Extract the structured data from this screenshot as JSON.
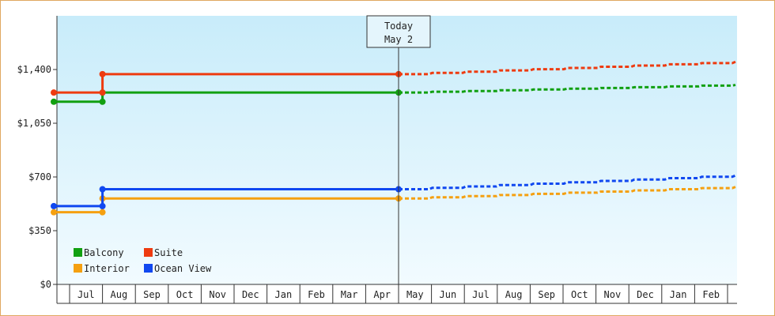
{
  "chart_data": {
    "type": "line",
    "title": "",
    "xlabel": "",
    "ylabel": "",
    "ylim": [
      0,
      1750
    ],
    "yticks": [
      {
        "value": 0,
        "label": "$0"
      },
      {
        "value": 350,
        "label": "$350"
      },
      {
        "value": 700,
        "label": "$700"
      },
      {
        "value": 1050,
        "label": "$1,050"
      },
      {
        "value": 1400,
        "label": "$1,400"
      }
    ],
    "months": [
      "Jul",
      "Aug",
      "Sep",
      "Oct",
      "Nov",
      "Dec",
      "Jan",
      "Feb",
      "Mar",
      "Apr",
      "May",
      "Jun",
      "Jul",
      "Aug",
      "Sep",
      "Oct",
      "Nov",
      "Dec",
      "Jan",
      "Feb"
    ],
    "today": {
      "line1": "Today",
      "line2": "May 2",
      "month_index": 10.0
    },
    "change_month_index": 1.0,
    "grid": false,
    "legend_position": "bottom-left",
    "series": [
      {
        "name": "Balcony",
        "color": "#11a011",
        "before": 1190,
        "after": 1250,
        "forecast_end": 1300
      },
      {
        "name": "Suite",
        "color": "#ee3b10",
        "before": 1250,
        "after": 1370,
        "forecast_end": 1450
      },
      {
        "name": "Interior",
        "color": "#f5a010",
        "before": 470,
        "after": 560,
        "forecast_end": 635
      },
      {
        "name": "Ocean View",
        "color": "#1048f0",
        "before": 510,
        "after": 620,
        "forecast_end": 710
      }
    ]
  }
}
